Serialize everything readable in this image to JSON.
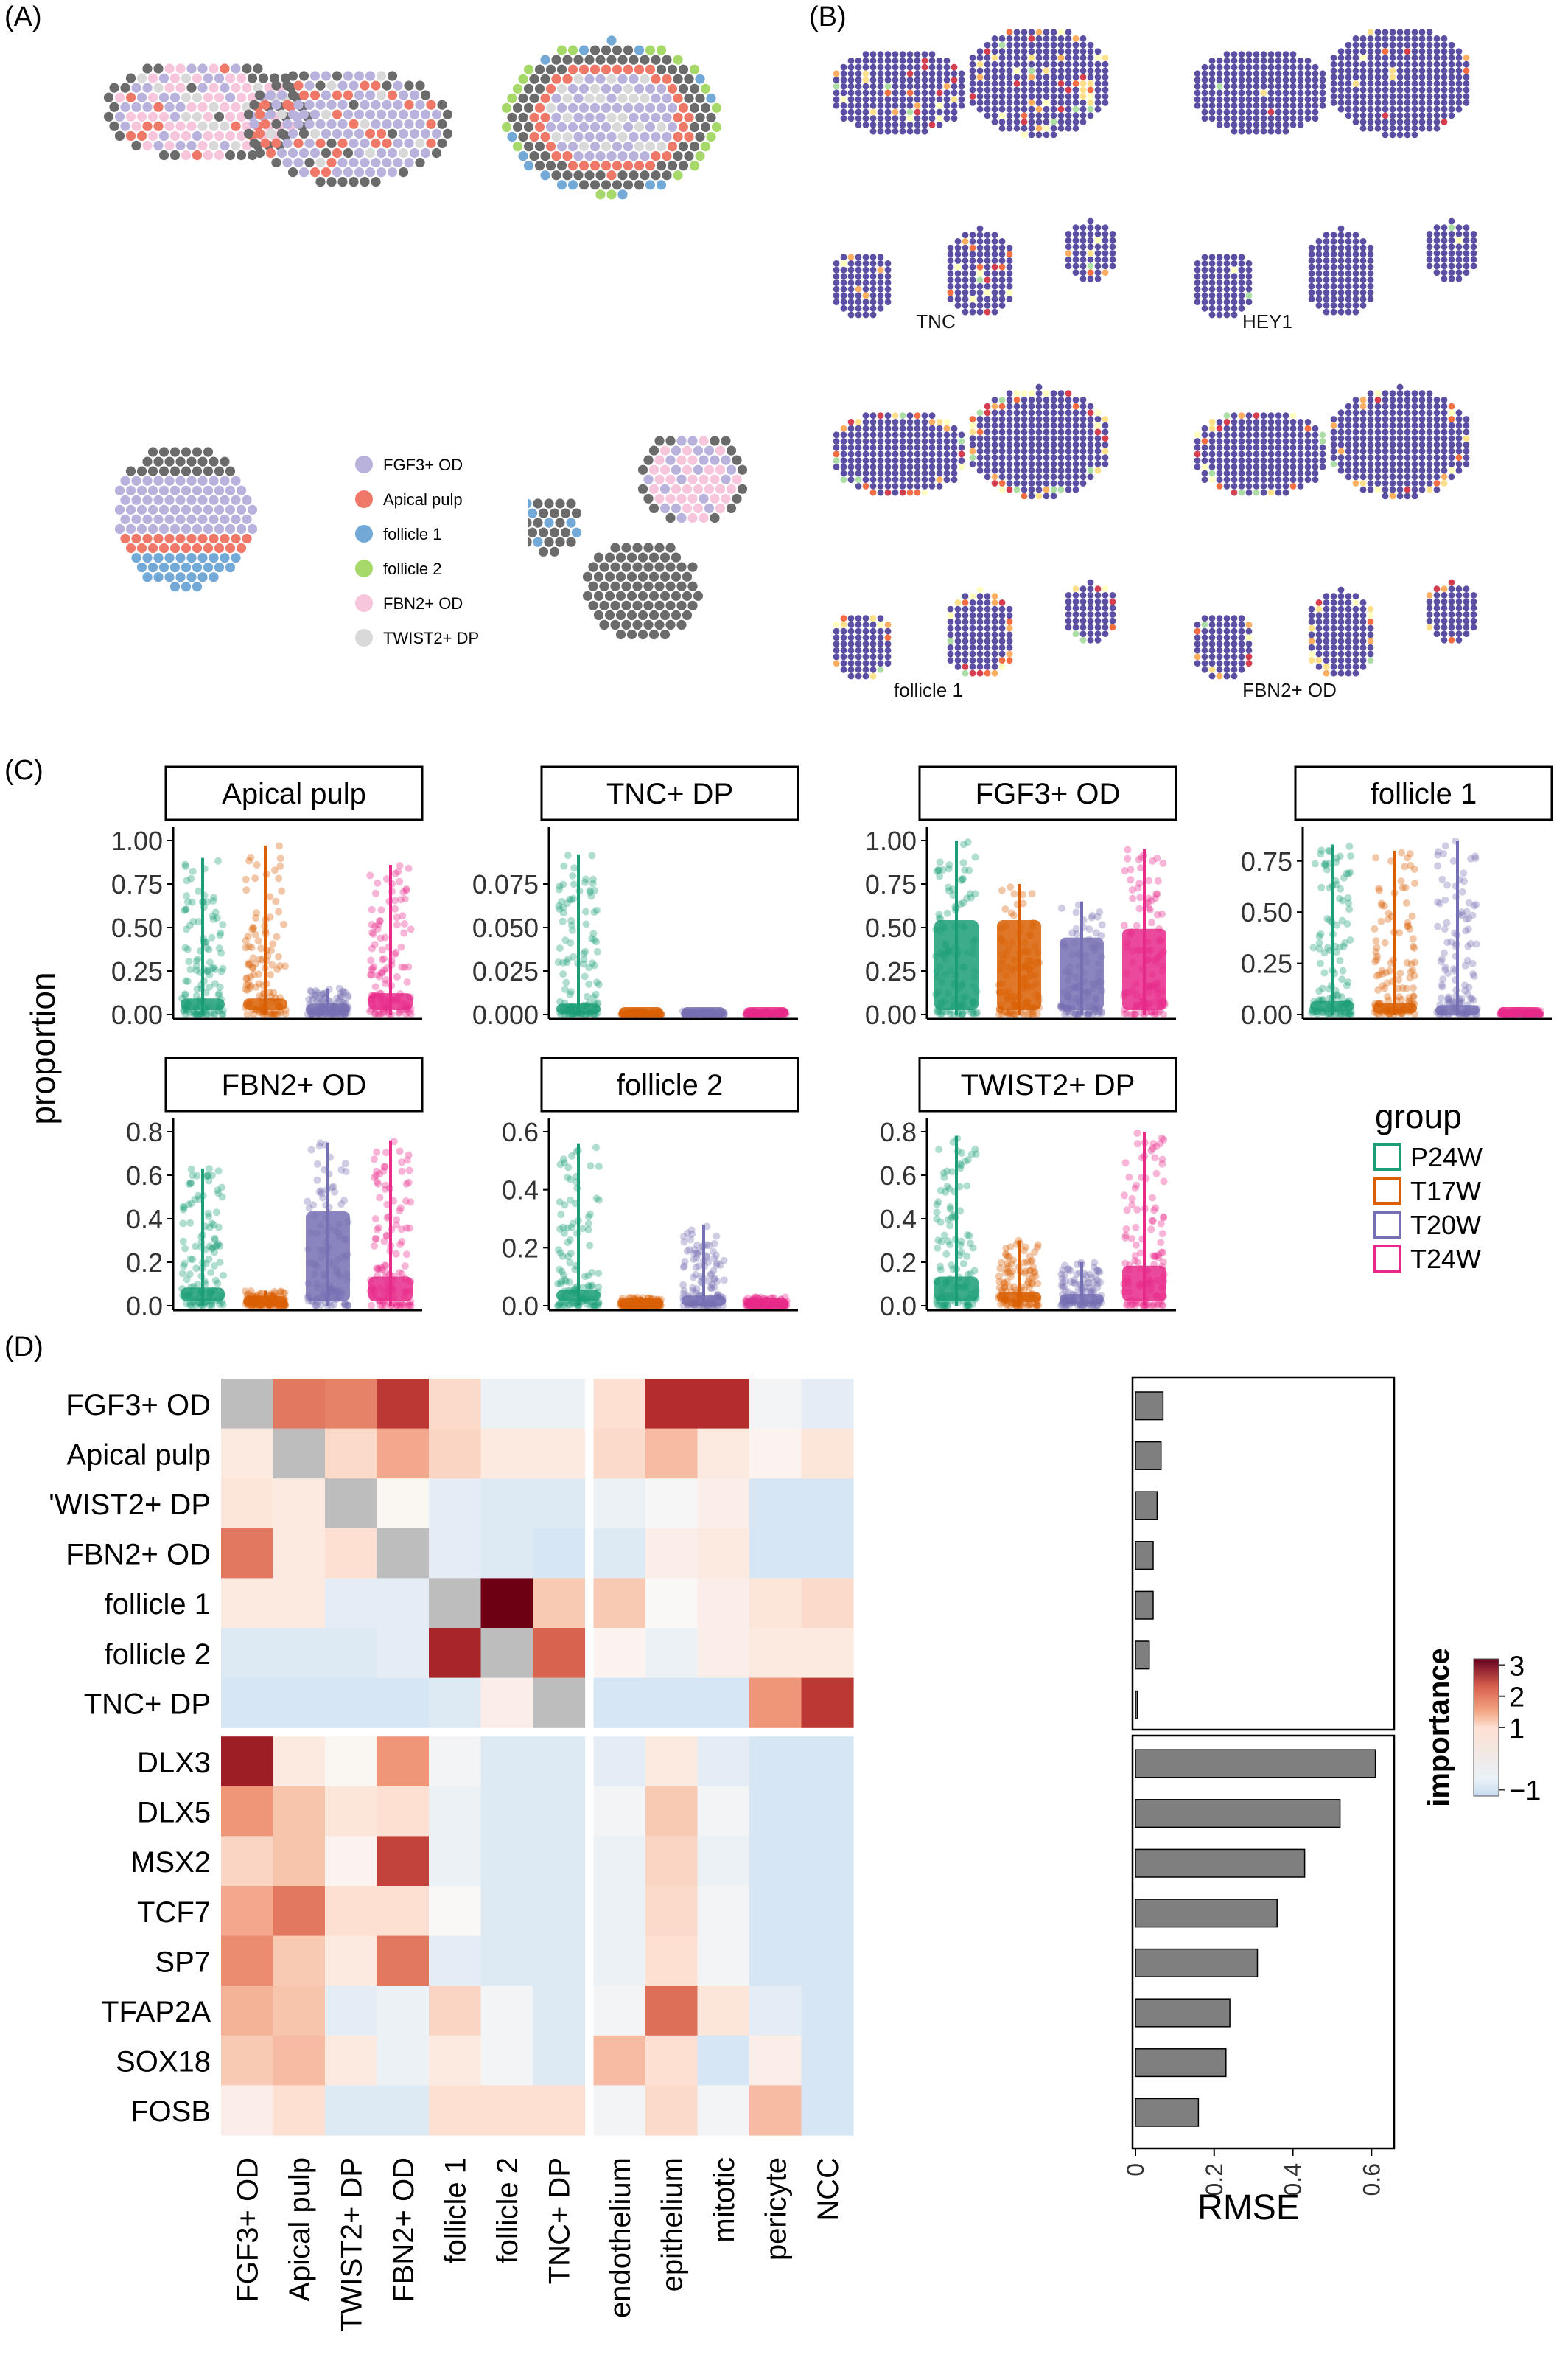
{
  "panels": {
    "A": {
      "letter": "(A)",
      "legend": [
        {
          "label": "FGF3+ OD",
          "color": "#b8b2dc"
        },
        {
          "label": "Apical pulp",
          "color": "#f07868"
        },
        {
          "label": "follicle 1",
          "color": "#73a9d7"
        },
        {
          "label": "follicle 2",
          "color": "#a6d96a"
        },
        {
          "label": "FBN2+ OD",
          "color": "#f7c6dd"
        },
        {
          "label": "TWIST2+ DP",
          "color": "#d9d9d9"
        }
      ]
    },
    "B": {
      "letter": "(B)",
      "maps": [
        "TNC",
        "HEY1",
        "follicle 1",
        "FBN2+ OD"
      ]
    },
    "C": {
      "letter": "(C)",
      "ylabel": "proportion",
      "legend_title": "group",
      "groups": [
        {
          "name": "P24W",
          "color": "#1b9e77"
        },
        {
          "name": "T17W",
          "color": "#d95f02"
        },
        {
          "name": "T20W",
          "color": "#7570b3"
        },
        {
          "name": "T24W",
          "color": "#e7298a"
        }
      ]
    },
    "D": {
      "letter": "(D)",
      "rmse_label": "RMSE",
      "colorbar_title": "importance",
      "colorbar_ticks": [
        "3",
        "2",
        "1",
        "−1"
      ]
    }
  },
  "chart_data": [
    {
      "type": "violin",
      "title": "Apical pulp",
      "ylim": [
        0,
        1.0
      ],
      "yticks": [
        "1.00",
        "0.75",
        "0.50",
        "0.25",
        "0.00"
      ],
      "series": [
        {
          "name": "P24W",
          "max": 0.9,
          "median": 0.05
        },
        {
          "name": "T17W",
          "max": 0.97,
          "median": 0.05
        },
        {
          "name": "T20W",
          "max": 0.15,
          "median": 0.02
        },
        {
          "name": "T24W",
          "max": 0.86,
          "median": 0.08
        }
      ]
    },
    {
      "type": "violin",
      "title": "TNC+ DP",
      "ylim": [
        0,
        0.1
      ],
      "yticks": [
        "0.075",
        "0.050",
        "0.025",
        "0.000"
      ],
      "series": [
        {
          "name": "P24W",
          "max": 0.092,
          "median": 0.002
        },
        {
          "name": "T17W",
          "max": 0.002,
          "median": 0.0
        },
        {
          "name": "T20W",
          "max": 0.002,
          "median": 0.0
        },
        {
          "name": "T24W",
          "max": 0.002,
          "median": 0.0
        }
      ]
    },
    {
      "type": "violin",
      "title": "FGF3+ OD",
      "ylim": [
        0,
        1.0
      ],
      "yticks": [
        "1.00",
        "0.75",
        "0.50",
        "0.25",
        "0.00"
      ],
      "series": [
        {
          "name": "P24W",
          "max": 1.0,
          "median": 0.5
        },
        {
          "name": "T17W",
          "max": 0.75,
          "median": 0.5
        },
        {
          "name": "T20W",
          "max": 0.65,
          "median": 0.4
        },
        {
          "name": "T24W",
          "max": 0.95,
          "median": 0.45
        }
      ]
    },
    {
      "type": "violin",
      "title": "follicle 1",
      "ylim": [
        0,
        0.85
      ],
      "yticks": [
        "0.75",
        "0.50",
        "0.25",
        "0.00"
      ],
      "series": [
        {
          "name": "P24W",
          "max": 0.83,
          "median": 0.03
        },
        {
          "name": "T17W",
          "max": 0.8,
          "median": 0.02
        },
        {
          "name": "T20W",
          "max": 0.85,
          "median": 0.01
        },
        {
          "name": "T24W",
          "max": 0.02,
          "median": 0.0
        }
      ]
    },
    {
      "type": "violin",
      "title": "FBN2+ OD",
      "ylim": [
        0,
        0.8
      ],
      "yticks": [
        "0.8",
        "0.6",
        "0.4",
        "0.2",
        "0.0"
      ],
      "series": [
        {
          "name": "P24W",
          "max": 0.63,
          "median": 0.05
        },
        {
          "name": "T17W",
          "max": 0.07,
          "median": 0.01
        },
        {
          "name": "T20W",
          "max": 0.75,
          "median": 0.4
        },
        {
          "name": "T24W",
          "max": 0.76,
          "median": 0.1
        }
      ]
    },
    {
      "type": "violin",
      "title": "follicle 2",
      "ylim": [
        0,
        0.6
      ],
      "yticks": [
        "0.6",
        "0.4",
        "0.2",
        "0.0"
      ],
      "series": [
        {
          "name": "P24W",
          "max": 0.56,
          "median": 0.03
        },
        {
          "name": "T17W",
          "max": 0.03,
          "median": 0.0
        },
        {
          "name": "T20W",
          "max": 0.28,
          "median": 0.01
        },
        {
          "name": "T24W",
          "max": 0.03,
          "median": 0.0
        }
      ]
    },
    {
      "type": "violin",
      "title": "TWIST2+ DP",
      "ylim": [
        0,
        0.8
      ],
      "yticks": [
        "0.8",
        "0.6",
        "0.4",
        "0.2",
        "0.0"
      ],
      "series": [
        {
          "name": "P24W",
          "max": 0.78,
          "median": 0.1
        },
        {
          "name": "T17W",
          "max": 0.3,
          "median": 0.03
        },
        {
          "name": "T20W",
          "max": 0.2,
          "median": 0.02
        },
        {
          "name": "T24W",
          "max": 0.8,
          "median": 0.15
        }
      ]
    },
    {
      "type": "heatmap",
      "rows": [
        "FGF3+ OD",
        "Apical pulp",
        "TWIST2+ DP",
        "FBN2+ OD",
        "follicle 1",
        "follicle 2",
        "TNC+ DP",
        "DLX3",
        "DLX5",
        "MSX2",
        "TCF7",
        "SP7",
        "TFAP2A",
        "SOX18",
        "FOSB"
      ],
      "row_labels_shown": [
        "FGF3+ OD",
        "Apical pulp",
        "'WIST2+ DP",
        "FBN2+ OD",
        "follicle 1",
        "follicle 2",
        "TNC+ DP",
        "DLX3",
        "DLX5",
        "MSX2",
        "TCF7",
        "SP7",
        "TFAP2A",
        "SOX18",
        "FOSB"
      ],
      "columns": [
        "FGF3+ OD",
        "Apical pulp",
        "TWIST2+ DP",
        "FBN2+ OD",
        "follicle 1",
        "follicle 2",
        "TNC+ DP",
        "endothelium",
        "epithelium",
        "mitotic",
        "pericyte",
        "NCC"
      ],
      "color_range": [
        -1,
        3
      ],
      "values": [
        [
          null,
          1.8,
          1.7,
          2.4,
          0.6,
          -0.2,
          -0.2,
          0.5,
          2.5,
          2.5,
          -0.1,
          -0.3
        ],
        [
          0.3,
          null,
          0.6,
          1.3,
          0.7,
          0.3,
          0.3,
          0.6,
          1.1,
          0.3,
          0.1,
          0.4
        ],
        [
          0.4,
          0.3,
          null,
          0.05,
          -0.3,
          -0.4,
          -0.4,
          -0.2,
          -0.05,
          0.2,
          -0.5,
          -0.5
        ],
        [
          1.8,
          0.3,
          0.5,
          null,
          -0.3,
          -0.4,
          -0.5,
          -0.4,
          0.2,
          0.3,
          -0.5,
          -0.5
        ],
        [
          0.3,
          0.3,
          -0.3,
          -0.3,
          null,
          3.1,
          0.9,
          0.9,
          0.0,
          0.2,
          0.4,
          0.6
        ],
        [
          -0.4,
          -0.4,
          -0.4,
          -0.3,
          2.6,
          null,
          2.0,
          0.1,
          -0.2,
          0.2,
          0.3,
          0.3
        ],
        [
          -0.5,
          -0.5,
          -0.5,
          -0.5,
          -0.4,
          0.2,
          null,
          -0.5,
          -0.5,
          -0.5,
          1.5,
          2.4
        ],
        [
          2.7,
          0.3,
          0.05,
          1.5,
          -0.1,
          -0.4,
          -0.4,
          -0.3,
          0.3,
          -0.3,
          -0.5,
          -0.5
        ],
        [
          1.5,
          1.0,
          0.4,
          0.5,
          -0.2,
          -0.4,
          -0.4,
          -0.1,
          0.9,
          -0.1,
          -0.5,
          -0.5
        ],
        [
          0.7,
          1.0,
          0.1,
          2.3,
          -0.2,
          -0.4,
          -0.4,
          -0.2,
          0.7,
          -0.2,
          -0.5,
          -0.5
        ],
        [
          1.3,
          1.8,
          0.5,
          0.5,
          0.0,
          -0.4,
          -0.4,
          -0.2,
          0.6,
          -0.1,
          -0.5,
          -0.5
        ],
        [
          1.6,
          0.9,
          0.3,
          1.8,
          -0.3,
          -0.4,
          -0.4,
          -0.2,
          0.5,
          -0.1,
          -0.5,
          -0.5
        ],
        [
          1.2,
          1.0,
          -0.3,
          -0.2,
          0.7,
          -0.1,
          -0.4,
          -0.1,
          1.9,
          0.4,
          -0.3,
          -0.5
        ],
        [
          0.9,
          1.1,
          0.3,
          -0.2,
          0.3,
          -0.1,
          -0.4,
          1.1,
          0.5,
          -0.5,
          0.2,
          -0.5
        ],
        [
          0.2,
          0.5,
          -0.4,
          -0.4,
          0.5,
          0.5,
          0.5,
          -0.1,
          0.6,
          -0.1,
          1.1,
          -0.5
        ]
      ],
      "rmse": [
        0.07,
        0.065,
        0.055,
        0.045,
        0.045,
        0.035,
        0.005,
        0.61,
        0.52,
        0.43,
        0.36,
        0.31,
        0.24,
        0.23,
        0.16
      ],
      "rmse_ticks": [
        "0",
        "0.2",
        "0.4",
        "0.6"
      ],
      "rmse_xlim": [
        0,
        0.65
      ]
    }
  ]
}
